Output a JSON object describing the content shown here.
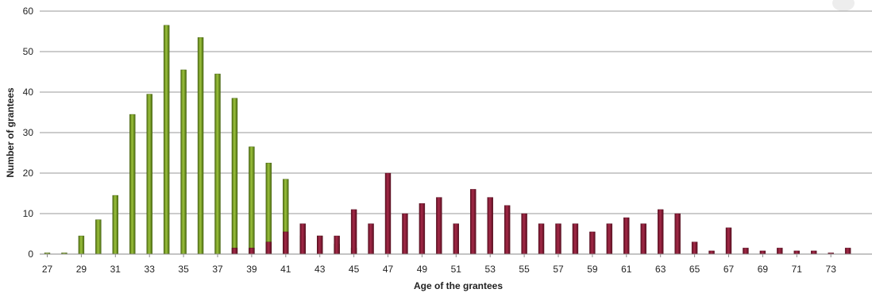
{
  "chart_data": {
    "type": "bar",
    "xlabel": "Age of the grantees",
    "ylabel": "Number of grantees",
    "ylim": [
      0,
      60
    ],
    "yticks": [
      0,
      10,
      20,
      30,
      40,
      50,
      60
    ],
    "x_tick_labels": [
      "27",
      "29",
      "31",
      "33",
      "35",
      "37",
      "39",
      "41",
      "43",
      "45",
      "47",
      "49",
      "51",
      "53",
      "55",
      "57",
      "59",
      "61",
      "63",
      "65",
      "67",
      "69",
      "71",
      "73"
    ],
    "categories": [
      27,
      28,
      29,
      30,
      31,
      32,
      33,
      34,
      35,
      36,
      37,
      38,
      39,
      40,
      41,
      42,
      43,
      44,
      45,
      46,
      47,
      48,
      49,
      50,
      51,
      52,
      53,
      54,
      55,
      56,
      57,
      58,
      59,
      60,
      61,
      62,
      63,
      64,
      65,
      66,
      67,
      68,
      69,
      70,
      71,
      72,
      73,
      74
    ],
    "grid": true,
    "legend": "none",
    "series": [
      {
        "color": "#6b8e23",
        "values": [
          0.3,
          0.3,
          4.5,
          8.5,
          14.5,
          34.5,
          39.5,
          56.5,
          45.5,
          53.5,
          44.5,
          38.5,
          26.5,
          22.5,
          18.5,
          4.5,
          4.5,
          2.5,
          1.5,
          null,
          null,
          null,
          null,
          null,
          null,
          null,
          null,
          null,
          null,
          null,
          null,
          null,
          null,
          null,
          null,
          null,
          null,
          null,
          null,
          null,
          null,
          null,
          null,
          null,
          null,
          null,
          null,
          null
        ]
      },
      {
        "color": "#7b1530",
        "values": [
          null,
          null,
          null,
          null,
          null,
          null,
          null,
          null,
          null,
          null,
          null,
          1.5,
          1.5,
          3,
          5.5,
          7.5,
          4.5,
          4.5,
          11,
          7.5,
          20,
          10,
          12.5,
          14,
          7.5,
          16,
          14,
          12,
          10,
          7.5,
          7.5,
          7.5,
          5.5,
          7.5,
          9,
          7.5,
          11,
          10,
          3,
          0.8,
          6.5,
          1.5,
          0.8,
          1.5,
          0.8,
          0.8,
          0.3,
          1.5
        ]
      }
    ]
  }
}
